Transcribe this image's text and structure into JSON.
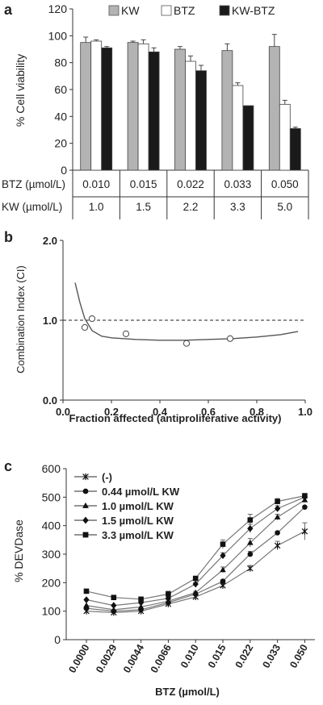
{
  "panel_a": {
    "panel_label": "a",
    "chart_data": {
      "type": "bar",
      "ylabel": "% Cell viability",
      "ylim": [
        0,
        120
      ],
      "yticks": [
        0,
        20,
        40,
        60,
        80,
        100,
        120
      ],
      "legend_position": "top",
      "series": [
        {
          "name": "KW",
          "color": "#b3b3b3",
          "values": [
            95,
            95,
            90,
            89,
            92
          ],
          "errors": [
            4,
            1,
            2,
            5,
            9
          ]
        },
        {
          "name": "BTZ",
          "color": "#ffffff",
          "values": [
            96,
            94,
            81,
            63,
            49
          ],
          "errors": [
            1,
            3,
            4,
            2,
            3
          ]
        },
        {
          "name": "KW-BTZ",
          "color": "#1a1a1a",
          "values": [
            91,
            88,
            74,
            48,
            31
          ],
          "errors": [
            1,
            3,
            4,
            0,
            1
          ]
        }
      ]
    },
    "table": {
      "row1_label": "BTZ (µmol/L)",
      "row2_label": "KW (µmol/L)",
      "row1": [
        "0.010",
        "0.015",
        "0.022",
        "0.033",
        "0.050"
      ],
      "row2": [
        "1.0",
        "1.5",
        "2.2",
        "3.3",
        "5.0"
      ]
    }
  },
  "panel_b": {
    "panel_label": "b",
    "chart_data": {
      "type": "scatter",
      "xlabel": "Fraction affected (antiproliferative activity)",
      "ylabel": "Combination Index (CI)",
      "xlim": [
        0,
        1.0
      ],
      "ylim": [
        0,
        2.0
      ],
      "xticks": [
        "0.0",
        "0.2",
        "0.4",
        "0.6",
        "0.8",
        "1.0"
      ],
      "yticks": [
        "0.0",
        "1.0",
        "2.0"
      ],
      "reference_line_y": 1.0,
      "points": [
        {
          "x": 0.09,
          "y": 0.91
        },
        {
          "x": 0.12,
          "y": 1.02
        },
        {
          "x": 0.26,
          "y": 0.83
        },
        {
          "x": 0.51,
          "y": 0.71
        },
        {
          "x": 0.69,
          "y": 0.77
        }
      ],
      "fit_curve": [
        {
          "x": 0.05,
          "y": 1.47
        },
        {
          "x": 0.07,
          "y": 1.22
        },
        {
          "x": 0.09,
          "y": 1.02
        },
        {
          "x": 0.12,
          "y": 0.87
        },
        {
          "x": 0.16,
          "y": 0.8
        },
        {
          "x": 0.2,
          "y": 0.78
        },
        {
          "x": 0.3,
          "y": 0.76
        },
        {
          "x": 0.4,
          "y": 0.75
        },
        {
          "x": 0.5,
          "y": 0.75
        },
        {
          "x": 0.6,
          "y": 0.76
        },
        {
          "x": 0.7,
          "y": 0.77
        },
        {
          "x": 0.8,
          "y": 0.79
        },
        {
          "x": 0.9,
          "y": 0.82
        },
        {
          "x": 0.97,
          "y": 0.86
        }
      ]
    }
  },
  "panel_c": {
    "panel_label": "c",
    "chart_data": {
      "type": "line",
      "xlabel": "BTZ (µmol/L)",
      "ylabel": "% DEVDase",
      "ylim": [
        0,
        600
      ],
      "yticks": [
        0,
        100,
        200,
        300,
        400,
        500,
        600
      ],
      "categories": [
        "0.0000",
        "0.0029",
        "0.0044",
        "0.0066",
        "0.010",
        "0.015",
        "0.022",
        "0.033",
        "0.050"
      ],
      "legend_position": "top-left",
      "series": [
        {
          "name": "(-)",
          "marker": "star",
          "values": [
            100,
            95,
            100,
            125,
            150,
            190,
            250,
            330,
            380
          ],
          "errors": [
            0,
            0,
            0,
            5,
            5,
            5,
            10,
            15,
            30
          ]
        },
        {
          "name": "0.44 µmol/L KW",
          "marker": "circle",
          "values": [
            110,
            100,
            105,
            130,
            160,
            205,
            300,
            375,
            465
          ],
          "errors": [
            0,
            0,
            0,
            5,
            5,
            5,
            10,
            5,
            0
          ]
        },
        {
          "name": "1.0 µmol/L KW",
          "marker": "triangle",
          "values": [
            120,
            105,
            115,
            135,
            165,
            245,
            340,
            430,
            490
          ],
          "errors": [
            0,
            0,
            0,
            5,
            5,
            10,
            15,
            10,
            0
          ]
        },
        {
          "name": "1.5 µmol/L KW",
          "marker": "diamond",
          "values": [
            140,
            120,
            130,
            145,
            195,
            295,
            390,
            460,
            500
          ],
          "errors": [
            0,
            0,
            0,
            5,
            5,
            10,
            15,
            10,
            0
          ]
        },
        {
          "name": "3.3 µmol/L KW",
          "marker": "square",
          "values": [
            170,
            148,
            142,
            160,
            215,
            335,
            420,
            485,
            505
          ],
          "errors": [
            0,
            5,
            5,
            10,
            5,
            15,
            20,
            10,
            5
          ]
        }
      ]
    }
  }
}
